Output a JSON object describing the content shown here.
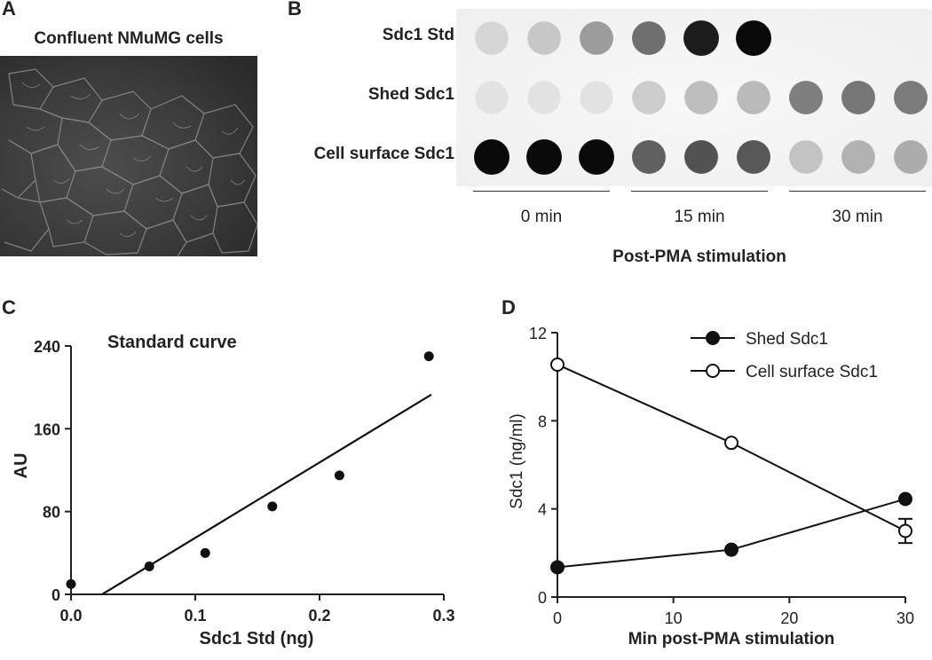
{
  "panel_a": {
    "letter": "A",
    "title": "Confluent NMuMG cells"
  },
  "panel_b": {
    "letter": "B",
    "rows": [
      "Sdc1 Std",
      "Shed Sdc1",
      "Cell surface Sdc1"
    ],
    "groups": [
      "0 min",
      "15 min",
      "30 min"
    ],
    "xlabel": "Post-PMA stimulation",
    "dot_intensity": [
      [
        0.1,
        0.16,
        0.35,
        0.55,
        0.92,
        1.0,
        null,
        null,
        null
      ],
      [
        0.04,
        0.04,
        0.04,
        0.14,
        0.2,
        0.22,
        0.48,
        0.52,
        0.5
      ],
      [
        1.0,
        1.0,
        1.0,
        0.62,
        0.68,
        0.66,
        0.18,
        0.26,
        0.28
      ]
    ]
  },
  "panel_c": {
    "letter": "C",
    "chart_data": {
      "type": "scatter",
      "title": "Standard curve",
      "xlabel": "Sdc1 Std (ng)",
      "ylabel": "AU",
      "xlim": [
        0,
        0.3
      ],
      "ylim": [
        0,
        240
      ],
      "xticks": [
        "0.0",
        "0.1",
        "0.2",
        "0.3"
      ],
      "yticks": [
        "0",
        "80",
        "160",
        "240"
      ],
      "points": [
        [
          0,
          10
        ],
        [
          0.063,
          27
        ],
        [
          0.108,
          40
        ],
        [
          0.162,
          85
        ],
        [
          0.216,
          115
        ],
        [
          0.288,
          230
        ]
      ],
      "fit_line": [
        [
          0.025,
          0
        ],
        [
          0.29,
          193
        ]
      ]
    }
  },
  "panel_d": {
    "letter": "D",
    "chart_data": {
      "type": "line",
      "xlabel": "Min post-PMA stimulation",
      "ylabel": "Sdc1 (ng/ml)",
      "xlim": [
        0,
        30
      ],
      "ylim": [
        0,
        12
      ],
      "xticks": [
        "0",
        "10",
        "20",
        "30"
      ],
      "yticks": [
        "0",
        "4",
        "8",
        "12"
      ],
      "legend_position": "top-right",
      "series": [
        {
          "name": "Shed Sdc1",
          "marker": "filled-circle",
          "x": [
            0,
            15,
            30
          ],
          "y": [
            1.35,
            2.15,
            4.45
          ],
          "err": [
            0,
            0,
            0
          ]
        },
        {
          "name": "Cell surface Sdc1",
          "marker": "open-circle",
          "x": [
            0,
            15,
            30
          ],
          "y": [
            10.55,
            7.0,
            3.0
          ],
          "err": [
            0,
            0,
            0.55
          ]
        }
      ]
    }
  }
}
